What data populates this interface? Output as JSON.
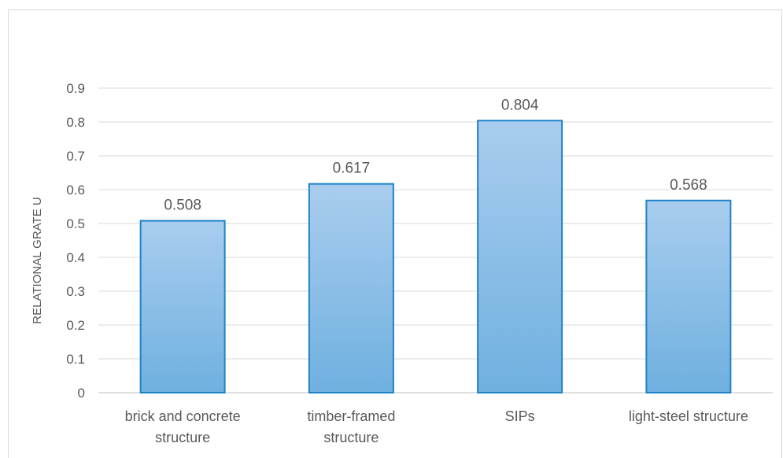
{
  "chart_data": {
    "type": "bar",
    "categories": [
      [
        "brick and concrete",
        "structure"
      ],
      [
        "timber-framed",
        "structure"
      ],
      [
        "SIPs"
      ],
      [
        "light-steel structure"
      ]
    ],
    "values": [
      0.508,
      0.617,
      0.804,
      0.568
    ],
    "value_labels": [
      "0.508",
      "0.617",
      "0.804",
      "0.568"
    ],
    "ylabel": "RELATIONAL GRATE U",
    "xlabel": "",
    "title": "",
    "ylim": [
      0,
      0.9
    ],
    "yticks": [
      "0",
      "0.1",
      "0.2",
      "0.3",
      "0.4",
      "0.5",
      "0.6",
      "0.7",
      "0.8",
      "0.9"
    ],
    "grid": true,
    "legend": "none",
    "colors": {
      "bar_top": "#a9cdee",
      "bar_bottom": "#6fb0e0",
      "bar_stroke": "#1f82c8",
      "grid": "#d9d9d9",
      "axis": "#bfbfbf",
      "text": "#595959"
    }
  }
}
